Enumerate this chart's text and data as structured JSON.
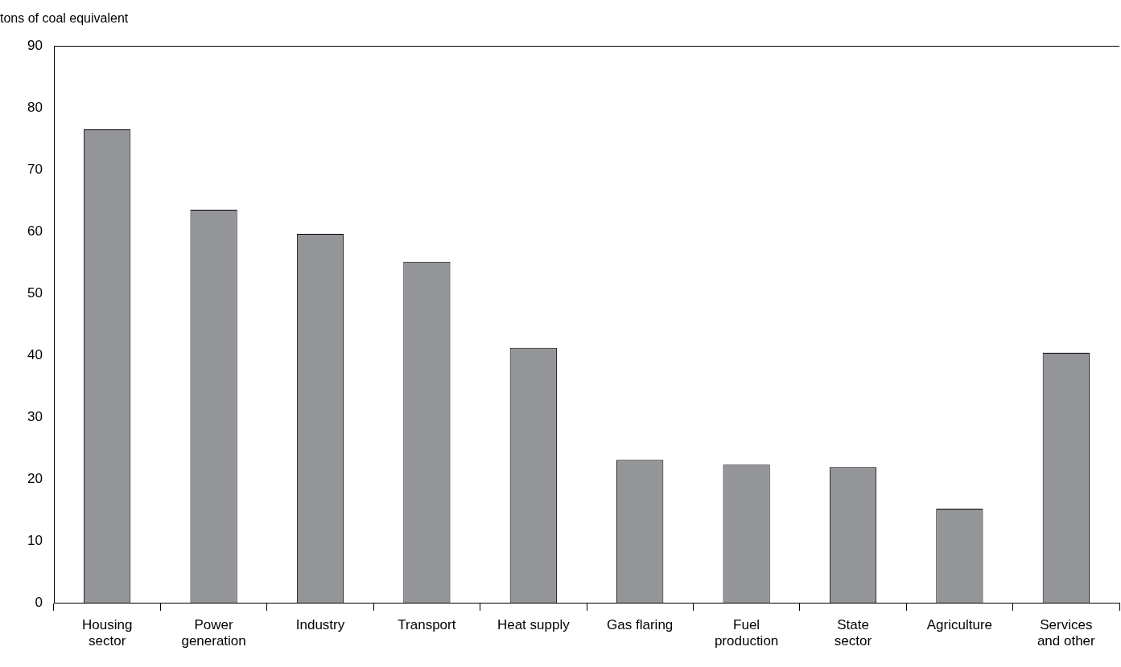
{
  "chart_data": {
    "type": "bar",
    "ylabel": "tons of coal equivalent",
    "categories": [
      "Housing\nsector",
      "Power\ngeneration",
      "Industry",
      "Transport",
      "Heat supply",
      "Gas flaring",
      "Fuel\nproduction",
      "State\nsector",
      "Agriculture",
      "Services\nand other"
    ],
    "values": [
      76.5,
      63.5,
      59.6,
      55.1,
      41.2,
      23.1,
      22.3,
      21.9,
      15.2,
      40.4
    ],
    "color": "#939598",
    "ylim": [
      0,
      90
    ],
    "yticks": [
      0,
      10,
      20,
      30,
      40,
      50,
      60,
      70,
      80,
      90
    ]
  }
}
